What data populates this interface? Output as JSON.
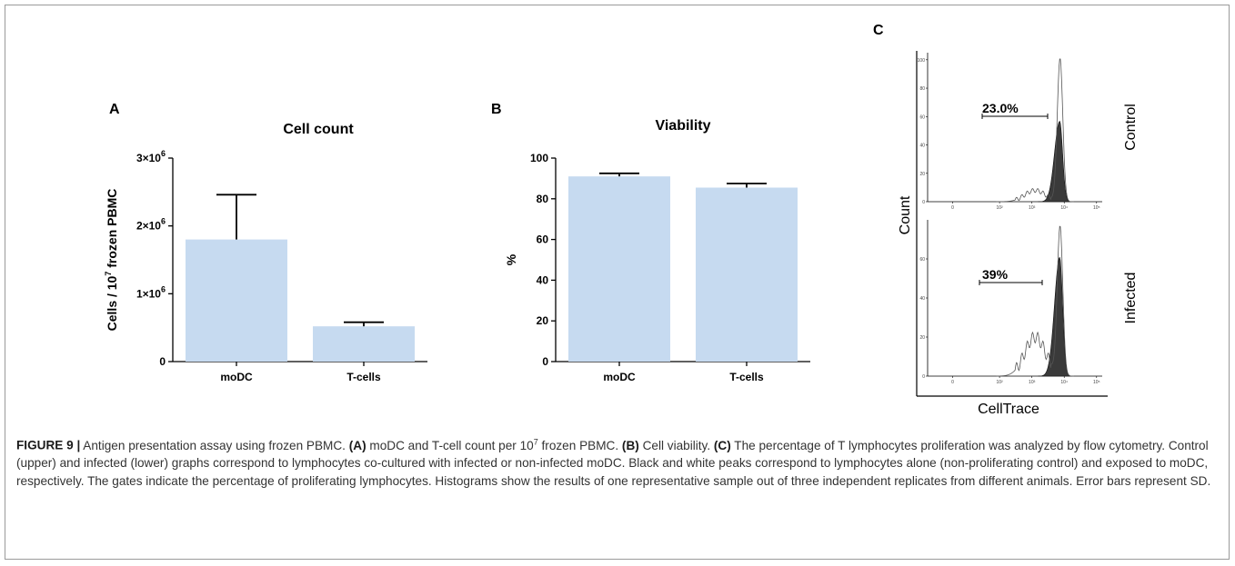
{
  "chart_data": [
    {
      "panel": "A",
      "type": "bar",
      "title": "Cell count",
      "ylabel": "Cells / 10^7 frozen PBMC",
      "ylabel_parts": [
        "Cells / 10",
        "7",
        " frozen PBMC"
      ],
      "categories": [
        "moDC",
        "T-cells"
      ],
      "values": [
        1800000,
        520000
      ],
      "error": [
        660000,
        60000
      ],
      "ylim": [
        0,
        3000000
      ],
      "yticks": [
        {
          "value": 0,
          "base": "0",
          "exp": ""
        },
        {
          "value": 1000000,
          "base": "1×10",
          "exp": "6"
        },
        {
          "value": 2000000,
          "base": "2×10",
          "exp": "6"
        },
        {
          "value": 3000000,
          "base": "3×10",
          "exp": "6"
        }
      ],
      "bar_color": "#c6daf0"
    },
    {
      "panel": "B",
      "type": "bar",
      "title": "Viability",
      "ylabel": "%",
      "categories": [
        "moDC",
        "T-cells"
      ],
      "values": [
        91,
        85.5
      ],
      "error": [
        1.5,
        2
      ],
      "ylim": [
        0,
        100
      ],
      "yticks": [
        {
          "value": 0,
          "base": "0",
          "exp": ""
        },
        {
          "value": 20,
          "base": "20",
          "exp": ""
        },
        {
          "value": 40,
          "base": "40",
          "exp": ""
        },
        {
          "value": 60,
          "base": "60",
          "exp": ""
        },
        {
          "value": 80,
          "base": "80",
          "exp": ""
        },
        {
          "value": 100,
          "base": "100",
          "exp": ""
        }
      ],
      "bar_color": "#c6daf0"
    },
    {
      "panel": "C",
      "type": "area",
      "xlabel": "CellTrace",
      "ylabel": "Count",
      "xscale": "log",
      "xticks": [
        "0",
        "10²",
        "10³",
        "10⁴",
        "10⁵"
      ],
      "panels": [
        {
          "name": "Control",
          "gate_label": "23.0%",
          "yticks": [
            "0",
            "20",
            "40",
            "60",
            "80",
            "100"
          ],
          "ymax": 105
        },
        {
          "name": "Infected",
          "gate_label": "39%",
          "yticks": [
            "0",
            "20",
            "40",
            "60"
          ],
          "ymax": 80
        }
      ]
    }
  ],
  "caption": {
    "figure_label": "FIGURE 9 |",
    "segments": [
      {
        "text": " Antigen presentation assay using frozen PBMC. ",
        "bold": false
      },
      {
        "text": "(A)",
        "bold": true
      },
      {
        "text": " moDC and T-cell count per 10",
        "bold": false
      },
      {
        "text": "7",
        "bold": false,
        "sup": true
      },
      {
        "text": " frozen PBMC. ",
        "bold": false
      },
      {
        "text": "(B)",
        "bold": true
      },
      {
        "text": " Cell viability. ",
        "bold": false
      },
      {
        "text": "(C)",
        "bold": true
      },
      {
        "text": " The percentage of T lymphocytes proliferation was analyzed by flow cytometry. Control (upper) and infected (lower) graphs correspond to lymphocytes co-cultured with infected or non-infected moDC. Black and white peaks correspond to lymphocytes alone (non-proliferating control) and exposed to moDC, respectively. The gates indicate the percentage of proliferating lymphocytes. Histograms show the results of one representative sample out of three independent replicates from different animals. Error bars represent SD.",
        "bold": false
      }
    ]
  }
}
